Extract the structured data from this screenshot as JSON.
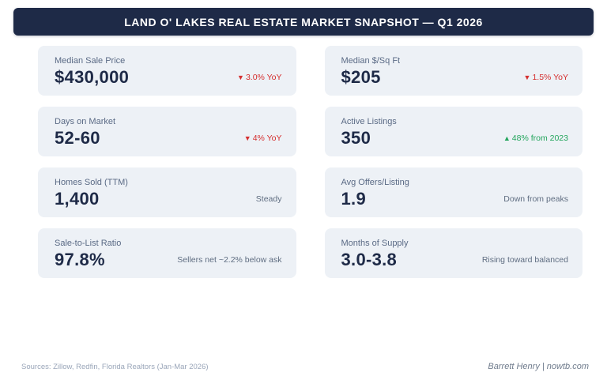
{
  "header": {
    "title": "LAND O' LAKES REAL ESTATE MARKET SNAPSHOT — Q1 2026"
  },
  "tiles": [
    {
      "label": "Median Sale Price",
      "value": "$430,000",
      "arrow": "▼",
      "note": "3.0% YoY",
      "note_type": "down"
    },
    {
      "label": "Median $/Sq Ft",
      "value": "$205",
      "arrow": "▼",
      "note": "1.5% YoY",
      "note_type": "down"
    },
    {
      "label": "Days on Market",
      "value": "52-60",
      "arrow": "▼",
      "note": "4% YoY",
      "note_type": "down"
    },
    {
      "label": "Active Listings",
      "value": "350",
      "arrow": "▲",
      "note": "48% from 2023",
      "note_type": "up"
    },
    {
      "label": "Homes Sold (TTM)",
      "value": "1,400",
      "note": "Steady",
      "note_type": "neutral"
    },
    {
      "label": "Avg Offers/Listing",
      "value": "1.9",
      "note": "Down from peaks",
      "note_type": "neutral"
    },
    {
      "label": "Sale-to-List Ratio",
      "value": "97.8%",
      "note": "Sellers net ~2.2% below ask",
      "note_type": "neutral"
    },
    {
      "label": "Months of Supply",
      "value": "3.0-3.8",
      "note": "Rising toward balanced",
      "note_type": "neutral"
    }
  ],
  "footer": {
    "sources": "Sources: Zillow, Redfin, Florida Realtors (Jan-Mar 2026)",
    "credit": "Barrett Henry | nowtb.com"
  },
  "colors": {
    "banner_bg": "#1e2a47",
    "banner_text": "#ffffff",
    "tile_bg": "#edf1f6",
    "value_navy": "#1e2a47",
    "label_gray": "#5a6a85",
    "down_red": "#d53030",
    "up_green": "#23a55c",
    "neutral_gray": "#5f6d81"
  }
}
